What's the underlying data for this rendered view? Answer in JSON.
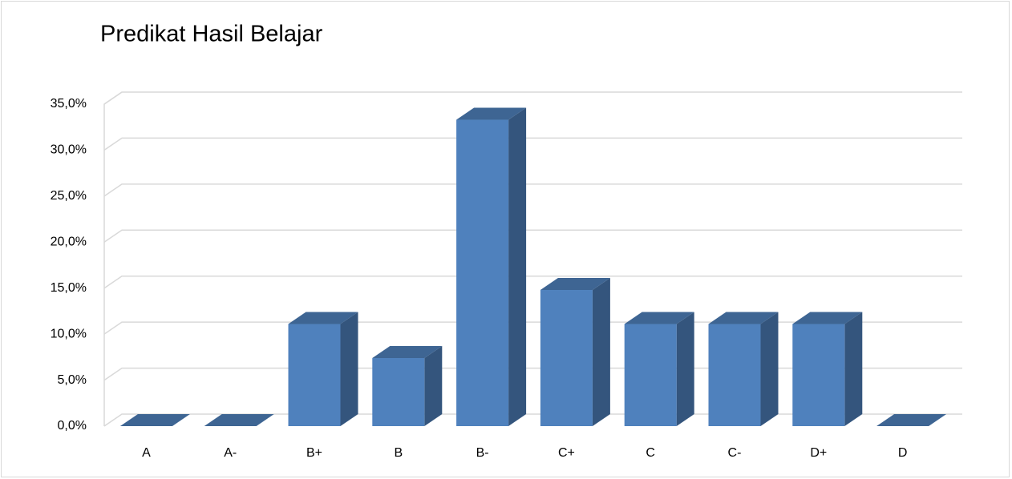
{
  "chart_data": {
    "type": "bar3d",
    "title": "Predikat Hasil Belajar",
    "categories": [
      "A",
      "A-",
      "B+",
      "B",
      "B-",
      "C+",
      "C",
      "C-",
      "D+",
      "D"
    ],
    "values": [
      0,
      0,
      11.1,
      7.4,
      33.3,
      14.8,
      11.1,
      11.1,
      11.1,
      0
    ],
    "color": "#4f81bd",
    "ylim": [
      0,
      35
    ],
    "yticks": [
      {
        "value": 0,
        "label": "0,0%"
      },
      {
        "value": 5,
        "label": "5,0%"
      },
      {
        "value": 10,
        "label": "10,0%"
      },
      {
        "value": 15,
        "label": "15,0%"
      },
      {
        "value": 20,
        "label": "20,0%"
      },
      {
        "value": 25,
        "label": "25,0%"
      },
      {
        "value": 30,
        "label": "30,0%"
      },
      {
        "value": 35,
        "label": "35,0%"
      }
    ],
    "grid": true
  }
}
